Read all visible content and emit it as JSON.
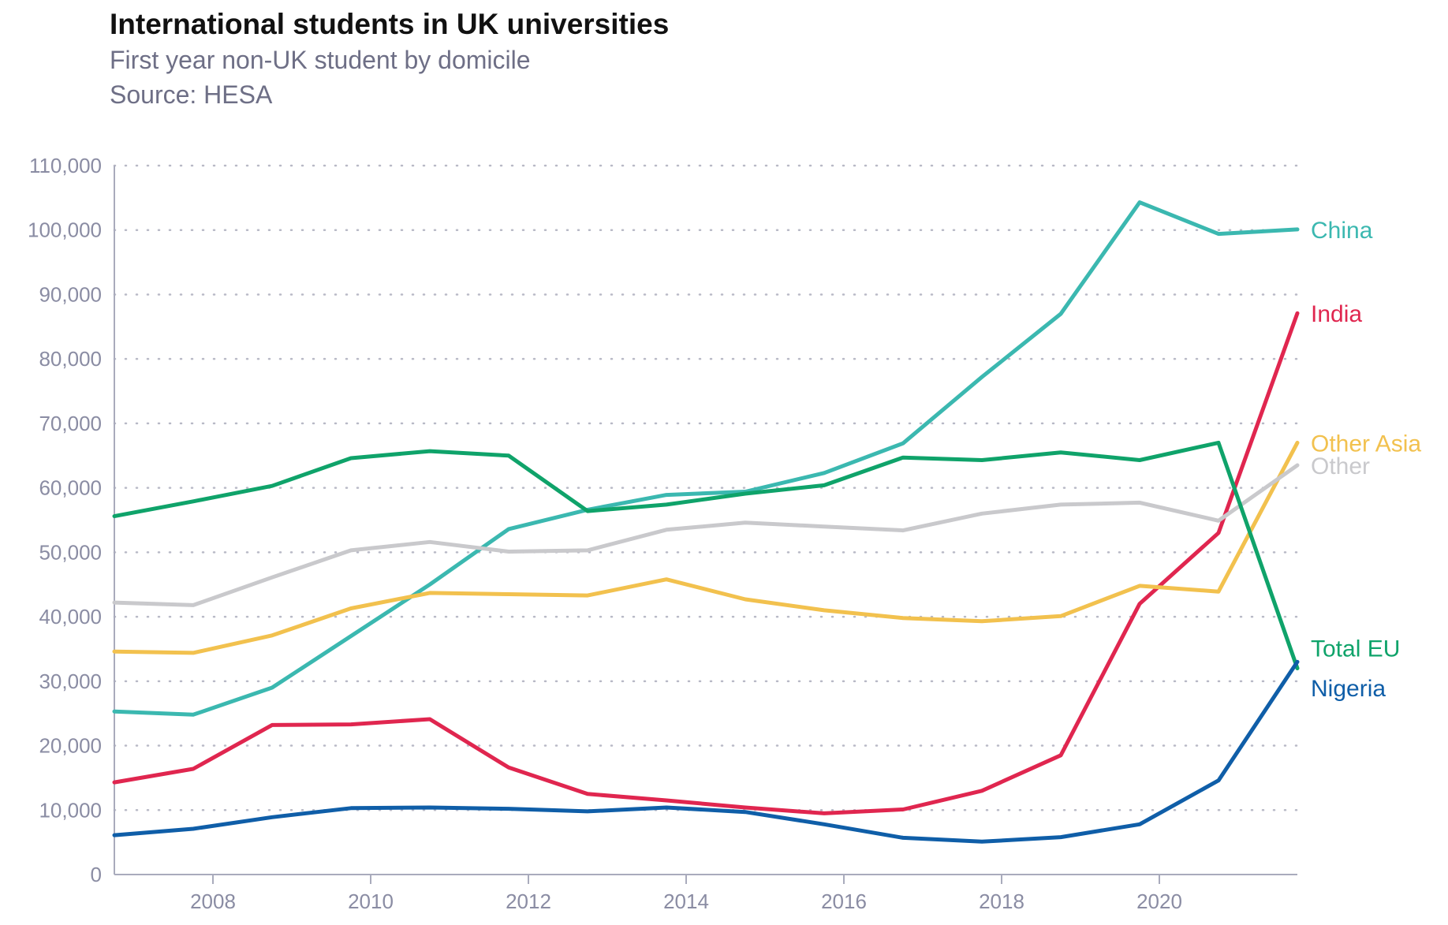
{
  "chart_data": {
    "type": "line",
    "title": "International students in UK universities",
    "subtitle": "First year non-UK student by domicile",
    "source": "Source: HESA",
    "x": [
      2006.75,
      2007.75,
      2008.75,
      2009.75,
      2010.75,
      2011.75,
      2012.75,
      2013.75,
      2014.75,
      2015.75,
      2016.75,
      2017.75,
      2018.75,
      2019.75,
      2020.75,
      2021.75
    ],
    "xticks": [
      2008,
      2010,
      2012,
      2014,
      2016,
      2018,
      2020
    ],
    "xlim": [
      2006.75,
      2021.75
    ],
    "yticks": [
      0,
      10000,
      20000,
      30000,
      40000,
      50000,
      60000,
      70000,
      80000,
      90000,
      100000,
      110000
    ],
    "ytick_labels": [
      "0",
      "10,000",
      "20,000",
      "30,000",
      "40,000",
      "50,000",
      "60,000",
      "70,000",
      "80,000",
      "90,000",
      "100,000",
      "110,000"
    ],
    "ylim": [
      0,
      110000
    ],
    "grid": "horizontal dotted",
    "series": [
      {
        "name": "China",
        "color": "#3bb8b0",
        "values": [
          25300,
          24800,
          29000,
          37000,
          45000,
          53600,
          56600,
          58900,
          59400,
          62300,
          66900,
          77200,
          87000,
          104300,
          99400,
          100100
        ]
      },
      {
        "name": "India",
        "color": "#e0264f",
        "values": [
          14300,
          16400,
          23200,
          23300,
          24100,
          16600,
          12500,
          11500,
          10400,
          9500,
          10100,
          13000,
          18500,
          42000,
          53000,
          87100
        ]
      },
      {
        "name": "Other Asia",
        "color": "#f2c14e",
        "values": [
          34600,
          34400,
          37100,
          41300,
          43700,
          43500,
          43300,
          45800,
          42700,
          41000,
          39800,
          39300,
          40100,
          44800,
          43900,
          67000
        ]
      },
      {
        "name": "Other",
        "color": "#c9c9cc",
        "values": [
          42200,
          41800,
          46100,
          50300,
          51600,
          50100,
          50300,
          53500,
          54600,
          54000,
          53400,
          56000,
          57400,
          57700,
          54900,
          63500
        ]
      },
      {
        "name": "Total EU",
        "color": "#0fa36a",
        "values": [
          55600,
          57900,
          60300,
          64600,
          65700,
          65000,
          56400,
          57400,
          59100,
          60400,
          64700,
          64300,
          65500,
          64300,
          67000,
          32000
        ]
      },
      {
        "name": "Nigeria",
        "color": "#0f5ea8",
        "values": [
          6100,
          7100,
          8900,
          10300,
          10400,
          10200,
          9800,
          10400,
          9700,
          7800,
          5700,
          5100,
          5800,
          7800,
          14600,
          33000
        ]
      }
    ],
    "labels": [
      {
        "text": "China",
        "color": "#3bb8b0",
        "y": 100100
      },
      {
        "text": "India",
        "color": "#e0264f",
        "y": 87100
      },
      {
        "text": "Other Asia",
        "color": "#f2c14e",
        "y": 67000
      },
      {
        "text": "Other",
        "color": "#c9c9cc",
        "y": 63500
      },
      {
        "text": "Total EU",
        "color": "#0fa36a",
        "y": 35200
      },
      {
        "text": "Nigeria",
        "color": "#0f5ea8",
        "y": 29000
      }
    ]
  }
}
